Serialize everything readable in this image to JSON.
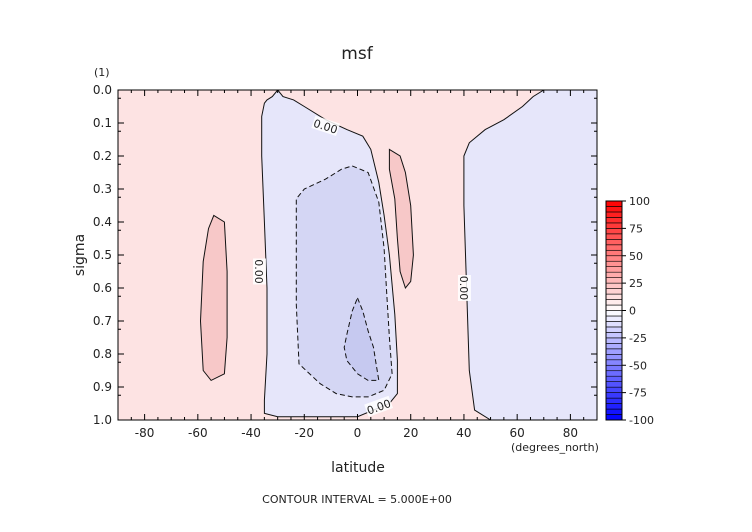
{
  "chart_data": {
    "type": "contour",
    "title": "msf",
    "xlabel": "latitude",
    "x_units": "(degrees_north)",
    "ylabel": "sigma",
    "y_units": "(1)",
    "footer": "CONTOUR INTERVAL = 5.000E+00",
    "xlim": [
      -90,
      90
    ],
    "ylim": [
      0.0,
      1.0
    ],
    "y_inverted": true,
    "x_ticks": [
      -80,
      -60,
      -40,
      -20,
      0,
      20,
      40,
      60,
      80
    ],
    "x_tick_labels": [
      "-80",
      "-60",
      "-40",
      "-20",
      "0",
      "20",
      "40",
      "60",
      "80"
    ],
    "y_ticks": [
      0.0,
      0.1,
      0.2,
      0.3,
      0.4,
      0.5,
      0.6,
      0.7,
      0.8,
      0.9,
      1.0
    ],
    "y_tick_labels": [
      "0.0",
      "0.1",
      "0.2",
      "0.3",
      "0.4",
      "0.5",
      "0.6",
      "0.7",
      "0.8",
      "0.9",
      "1.0"
    ],
    "contour_interval": 5.0,
    "colorbar": {
      "min": -100,
      "max": 100,
      "ticks": [
        100,
        75,
        50,
        25,
        0,
        -25,
        -50,
        -75,
        -100
      ],
      "tick_labels": [
        "100",
        "75",
        "50",
        "25",
        "0",
        "-25",
        "-50",
        "-75",
        "-100"
      ],
      "colors": {
        "negative": "#0000ff",
        "zero": "#ffffff",
        "positive": "#ff0000"
      }
    },
    "background_fill": "#fde3e3",
    "contours": [
      {
        "level": 0,
        "style": "solid",
        "fill": "#e6e6fa",
        "points": [
          [
            -34,
            0.03
          ],
          [
            -32,
            0.02
          ],
          [
            -30,
            0.0
          ],
          [
            -28,
            0.02
          ],
          [
            -24,
            0.03
          ],
          [
            -20,
            0.05
          ],
          [
            -12,
            0.09
          ],
          [
            -4,
            0.12
          ],
          [
            2,
            0.14
          ],
          [
            5,
            0.18
          ],
          [
            8,
            0.28
          ],
          [
            10,
            0.38
          ],
          [
            12,
            0.5
          ],
          [
            14,
            0.68
          ],
          [
            15,
            0.82
          ],
          [
            15,
            0.92
          ],
          [
            12,
            0.95
          ],
          [
            6,
            0.97
          ],
          [
            0,
            0.99
          ],
          [
            -10,
            0.99
          ],
          [
            -30,
            0.99
          ],
          [
            -35,
            0.98
          ],
          [
            -35,
            0.94
          ],
          [
            -34,
            0.8
          ],
          [
            -34,
            0.6
          ],
          [
            -35,
            0.4
          ],
          [
            -36,
            0.2
          ],
          [
            -36,
            0.08
          ],
          [
            -35,
            0.04
          ]
        ]
      },
      {
        "level": 0,
        "style": "solid",
        "fill": "#e6e6fa",
        "points": [
          [
            70,
            0.0
          ],
          [
            90,
            0.0
          ],
          [
            90,
            1.0
          ],
          [
            50,
            1.0
          ],
          [
            44,
            0.97
          ],
          [
            42,
            0.85
          ],
          [
            41,
            0.6
          ],
          [
            40,
            0.35
          ],
          [
            40,
            0.2
          ],
          [
            42,
            0.16
          ],
          [
            48,
            0.12
          ],
          [
            55,
            0.09
          ],
          [
            62,
            0.05
          ],
          [
            66,
            0.02
          ]
        ]
      },
      {
        "level": -5,
        "style": "dashed",
        "fill": "#d4d6f4",
        "points": [
          [
            -2,
            0.23
          ],
          [
            4,
            0.25
          ],
          [
            8,
            0.34
          ],
          [
            10,
            0.48
          ],
          [
            11,
            0.62
          ],
          [
            12,
            0.75
          ],
          [
            13,
            0.86
          ],
          [
            10,
            0.91
          ],
          [
            4,
            0.93
          ],
          [
            -2,
            0.93
          ],
          [
            -8,
            0.92
          ],
          [
            -14,
            0.89
          ],
          [
            -22,
            0.83
          ],
          [
            -23,
            0.65
          ],
          [
            -23,
            0.45
          ],
          [
            -23,
            0.33
          ],
          [
            -20,
            0.3
          ],
          [
            -12,
            0.27
          ],
          [
            -6,
            0.24
          ]
        ]
      },
      {
        "level": -10,
        "style": "dashed",
        "fill": "#c6c9f0",
        "points": [
          [
            0,
            0.63
          ],
          [
            2,
            0.67
          ],
          [
            4,
            0.73
          ],
          [
            6,
            0.78
          ],
          [
            7,
            0.83
          ],
          [
            8,
            0.88
          ],
          [
            4,
            0.88
          ],
          [
            0,
            0.86
          ],
          [
            -4,
            0.82
          ],
          [
            -5,
            0.78
          ],
          [
            -4,
            0.74
          ],
          [
            -2,
            0.67
          ]
        ]
      },
      {
        "level": 5,
        "style": "solid",
        "fill": "#f7c8c8",
        "points": [
          [
            -54,
            0.38
          ],
          [
            -50,
            0.4
          ],
          [
            -49,
            0.55
          ],
          [
            -49,
            0.75
          ],
          [
            -50,
            0.86
          ],
          [
            -55,
            0.88
          ],
          [
            -58,
            0.85
          ],
          [
            -59,
            0.7
          ],
          [
            -58,
            0.52
          ],
          [
            -56,
            0.42
          ]
        ]
      },
      {
        "level": 5,
        "style": "solid",
        "fill": "#f7c8c8",
        "points": [
          [
            12,
            0.18
          ],
          [
            16,
            0.2
          ],
          [
            18,
            0.25
          ],
          [
            20,
            0.35
          ],
          [
            21,
            0.5
          ],
          [
            20,
            0.58
          ],
          [
            18,
            0.6
          ],
          [
            16,
            0.55
          ],
          [
            15,
            0.45
          ],
          [
            14,
            0.33
          ],
          [
            12,
            0.24
          ]
        ]
      }
    ],
    "contour_labels": [
      {
        "text": "0.00",
        "x": -12,
        "y": 0.11,
        "rotate": 18
      },
      {
        "text": "0.00",
        "x": -37,
        "y": 0.55,
        "rotate": 90
      },
      {
        "text": "0.00",
        "x": 8,
        "y": 0.96,
        "rotate": -20
      },
      {
        "text": "0.00",
        "x": 40,
        "y": 0.6,
        "rotate": 90
      }
    ]
  }
}
